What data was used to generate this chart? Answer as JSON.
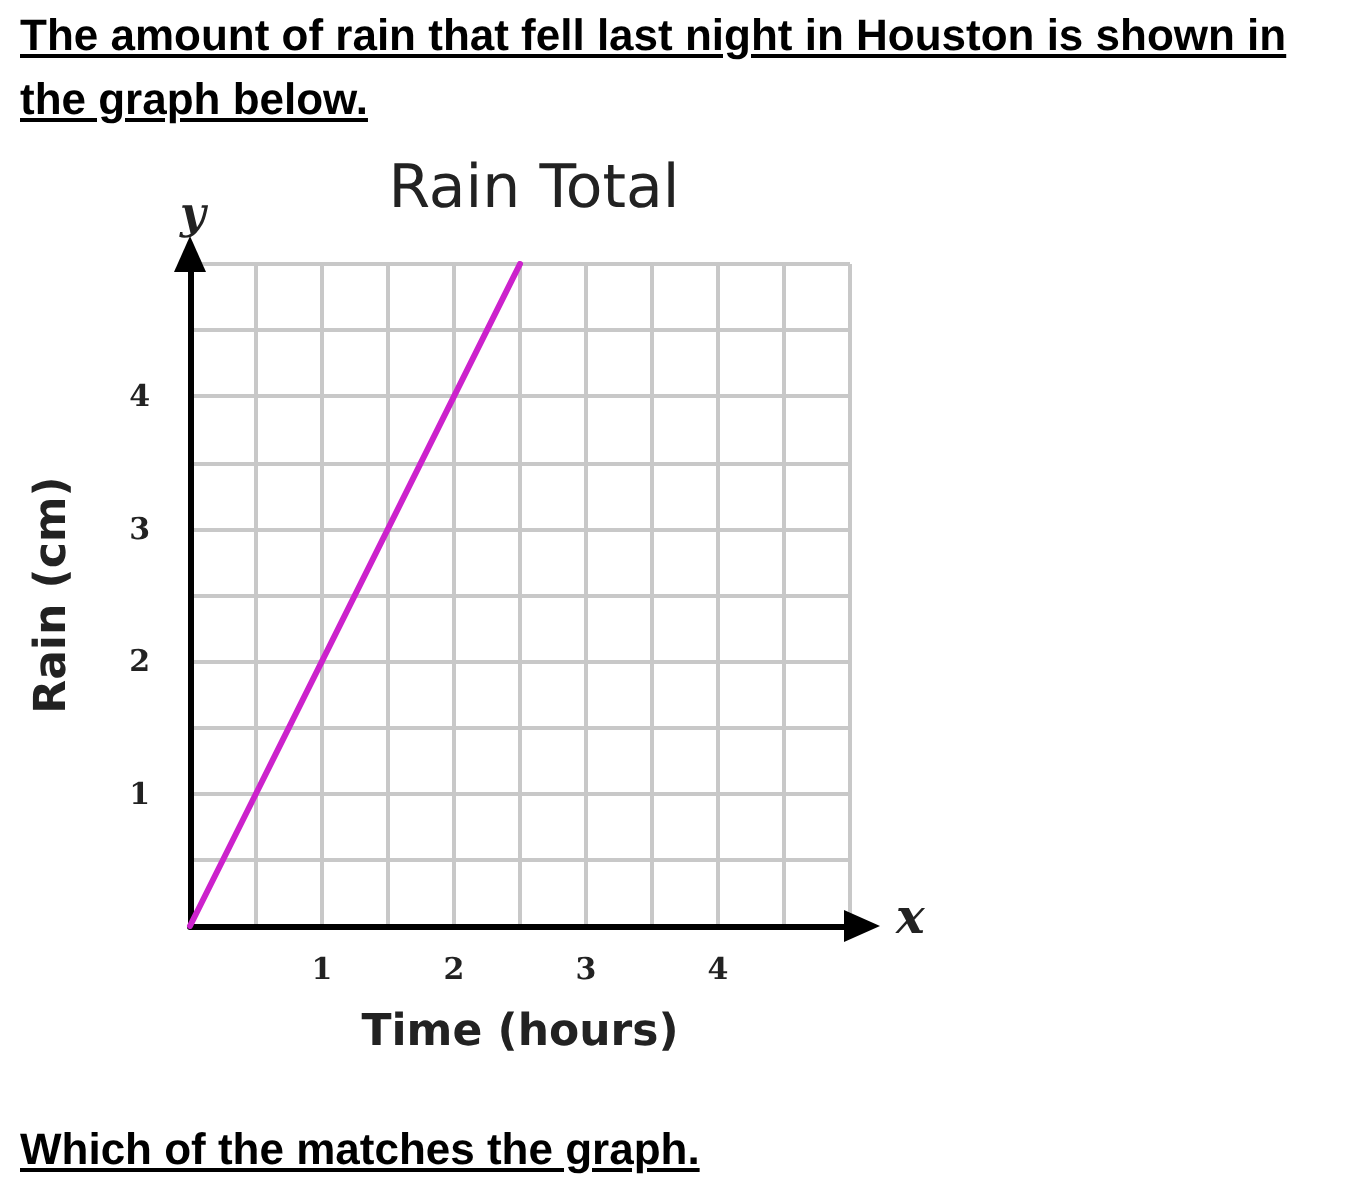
{
  "chart_data": {
    "type": "line",
    "title": "Rain Total",
    "xlabel": "Time (hours)",
    "ylabel": "Rain (cm)",
    "annotations": [
      "The amount of rain that fell last night in Houston is shown in the graph below.",
      "Which of the matches the graph.",
      "y",
      "x"
    ],
    "x": [
      0,
      2.5
    ],
    "series": [
      {
        "color": "#cc22cc",
        "values": [
          0,
          5
        ]
      }
    ],
    "xlim": [
      0,
      5
    ],
    "ylim": [
      0,
      5
    ],
    "xticks": [
      {
        "value": 0.5,
        "label": null
      },
      1,
      {
        "value": 1.5,
        "label": null
      },
      2,
      {
        "value": 2.5,
        "label": null
      },
      3,
      {
        "value": 3.5,
        "label": null
      },
      4,
      {
        "value": 4.5,
        "label": null
      },
      {
        "value": 5,
        "label": null
      }
    ],
    "yticks": [
      {
        "value": 0.5,
        "label": null
      },
      1,
      {
        "value": 1.5,
        "label": null
      },
      2,
      {
        "value": 2.5,
        "label": null
      },
      3,
      {
        "value": 3.5,
        "label": null
      },
      4,
      {
        "value": 4.5,
        "label": null
      },
      {
        "value": 5,
        "label": null
      }
    ],
    "grid": true,
    "marker": "none",
    "line_style": "solid"
  }
}
